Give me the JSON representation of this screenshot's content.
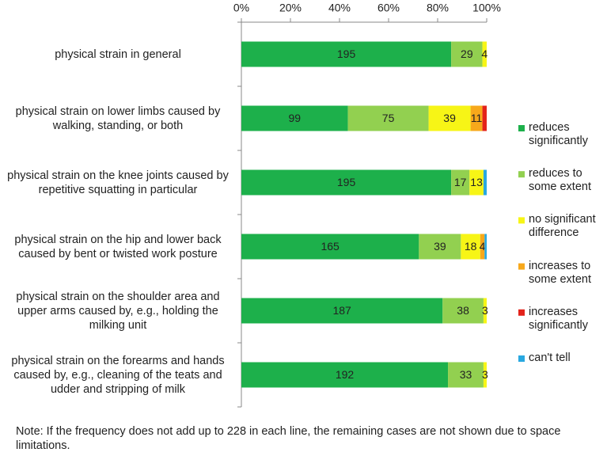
{
  "chart_data": {
    "type": "stacked-bar-horizontal",
    "categories": [
      "physical strain in general",
      "physical strain on lower limbs caused by walking, standing, or both",
      "physical strain on the knee joints caused by repetitive squatting in particular",
      "physical strain on the hip and lower back caused by bent or twisted work posture",
      "physical strain on the shoulder area and upper arms caused by, e.g., holding the milking unit",
      "physical strain on the forearms and hands caused by, e.g., cleaning of the teats and udder and stripping of milk"
    ],
    "series": [
      {
        "name": "reduces significantly",
        "color": "#1db04b",
        "values": [
          195,
          99,
          195,
          165,
          187,
          192
        ],
        "value_labels": [
          "195",
          "99",
          "195",
          "165",
          "187",
          "192"
        ]
      },
      {
        "name": "reduces to some extent",
        "color": "#92d050",
        "values": [
          29,
          75,
          17,
          39,
          38,
          33
        ],
        "value_labels": [
          "29",
          "75",
          "17",
          "39",
          "38",
          "33"
        ]
      },
      {
        "name": "no significant difference",
        "color": "#f7f516",
        "values": [
          4,
          39,
          13,
          18,
          3,
          3
        ],
        "value_labels": [
          "4",
          "39",
          "13",
          "18",
          "3",
          "3"
        ]
      },
      {
        "name": "increases to some extent",
        "color": "#f7a81b",
        "values": [
          0,
          11,
          0,
          4,
          0,
          0
        ],
        "value_labels": [
          null,
          "11",
          null,
          "4",
          null,
          null
        ]
      },
      {
        "name": "increases significantly",
        "color": "#e3231b",
        "values": [
          0,
          4,
          0,
          0,
          0,
          0
        ],
        "value_labels": [
          null,
          null,
          null,
          null,
          null,
          null
        ]
      },
      {
        "name": "can't tell",
        "color": "#29a8e0",
        "values": [
          0,
          0,
          3,
          2,
          0,
          0
        ],
        "value_labels": [
          null,
          null,
          null,
          null,
          null,
          null
        ]
      }
    ],
    "xlim": [
      0,
      228
    ],
    "xticks": [
      {
        "value": 0,
        "label": "0%"
      },
      {
        "value": 45.6,
        "label": "20%"
      },
      {
        "value": 91.2,
        "label": "40%"
      },
      {
        "value": 136.8,
        "label": "60%"
      },
      {
        "value": 182.4,
        "label": "80%"
      },
      {
        "value": 228,
        "label": "100%"
      }
    ],
    "legend": "right",
    "note": "Note: If the frequency does not add up to 228 in each line, the remaining cases are not shown due to space limitations."
  }
}
